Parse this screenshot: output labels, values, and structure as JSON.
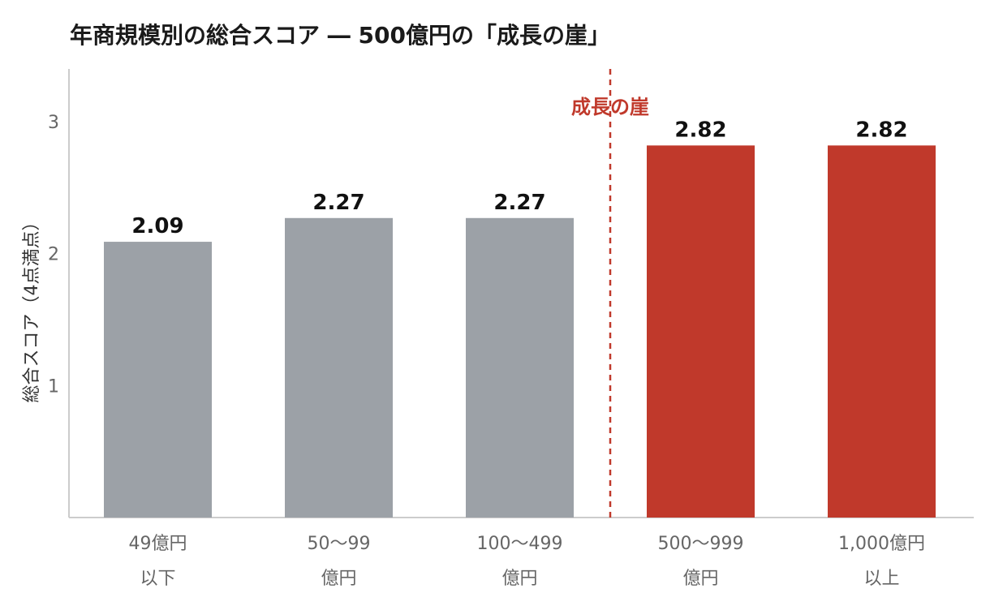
{
  "chart_data": {
    "type": "bar",
    "title": "年商規模別の総合スコア ― 500億円の「成長の崖」",
    "xlabel": "",
    "ylabel": "総合スコア（4点満点）",
    "ylim": [
      0,
      3.4
    ],
    "yticks": [
      1,
      2,
      3
    ],
    "grid": false,
    "categories": [
      [
        "49億円",
        "以下"
      ],
      [
        "50〜99",
        "億円"
      ],
      [
        "100〜499",
        "億円"
      ],
      [
        "500〜999",
        "億円"
      ],
      [
        "1,000億円",
        "以上"
      ]
    ],
    "values": [
      2.09,
      2.27,
      2.27,
      2.82,
      2.82
    ],
    "value_labels": [
      "2.09",
      "2.27",
      "2.27",
      "2.82",
      "2.82"
    ],
    "highlighted": [
      false,
      false,
      false,
      true,
      true
    ],
    "colors": {
      "default": "#9ca1a7",
      "highlight": "#c0392b",
      "annotation": "#c0392b",
      "axis": "#cccccc"
    },
    "annotation": {
      "text": "成長の崖",
      "position": "between 100〜499億円 and 500〜999億円",
      "style": "dashed-vertical-line"
    }
  }
}
